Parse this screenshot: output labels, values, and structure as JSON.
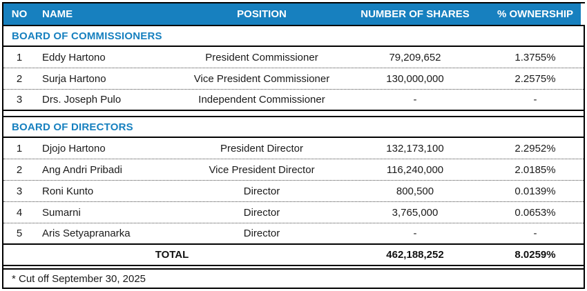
{
  "theme": {
    "header_bg": "#1780bf",
    "header_text": "#ffffff",
    "section_text": "#1780bf",
    "border_color": "#000000",
    "body_text": "#1a1a1a"
  },
  "table": {
    "columns": [
      "NO",
      "NAME",
      "POSITION",
      "NUMBER OF SHARES",
      "% OWNERSHIP"
    ],
    "sections": [
      {
        "title": "BOARD OF COMMISSIONERS",
        "rows": [
          {
            "no": "1",
            "name": "Eddy Hartono",
            "position": "President Commissioner",
            "shares": "79,209,652",
            "ownership": "1.3755%"
          },
          {
            "no": "2",
            "name": "Surja Hartono",
            "position": "Vice President Commissioner",
            "shares": "130,000,000",
            "ownership": "2.2575%"
          },
          {
            "no": "3",
            "name": "Drs. Joseph Pulo",
            "position": "Independent Commissioner",
            "shares": "-",
            "ownership": "-"
          }
        ]
      },
      {
        "title": "BOARD OF DIRECTORS",
        "rows": [
          {
            "no": "1",
            "name": "Djojo Hartono",
            "position": "President Director",
            "shares": "132,173,100",
            "ownership": "2.2952%"
          },
          {
            "no": "2",
            "name": "Ang Andri Pribadi",
            "position": "Vice President Director",
            "shares": "116,240,000",
            "ownership": "2.0185%"
          },
          {
            "no": "3",
            "name": "Roni Kunto",
            "position": "Director",
            "shares": "800,500",
            "ownership": "0.0139%"
          },
          {
            "no": "4",
            "name": "Sumarni",
            "position": "Director",
            "shares": "3,765,000",
            "ownership": "0.0653%"
          },
          {
            "no": "5",
            "name": "Aris Setyapranarka",
            "position": "Director",
            "shares": "-",
            "ownership": "-"
          }
        ]
      }
    ],
    "total": {
      "label": "TOTAL",
      "shares": "462,188,252",
      "ownership": "8.0259%"
    },
    "footnote": "* Cut off September 30, 2025"
  }
}
